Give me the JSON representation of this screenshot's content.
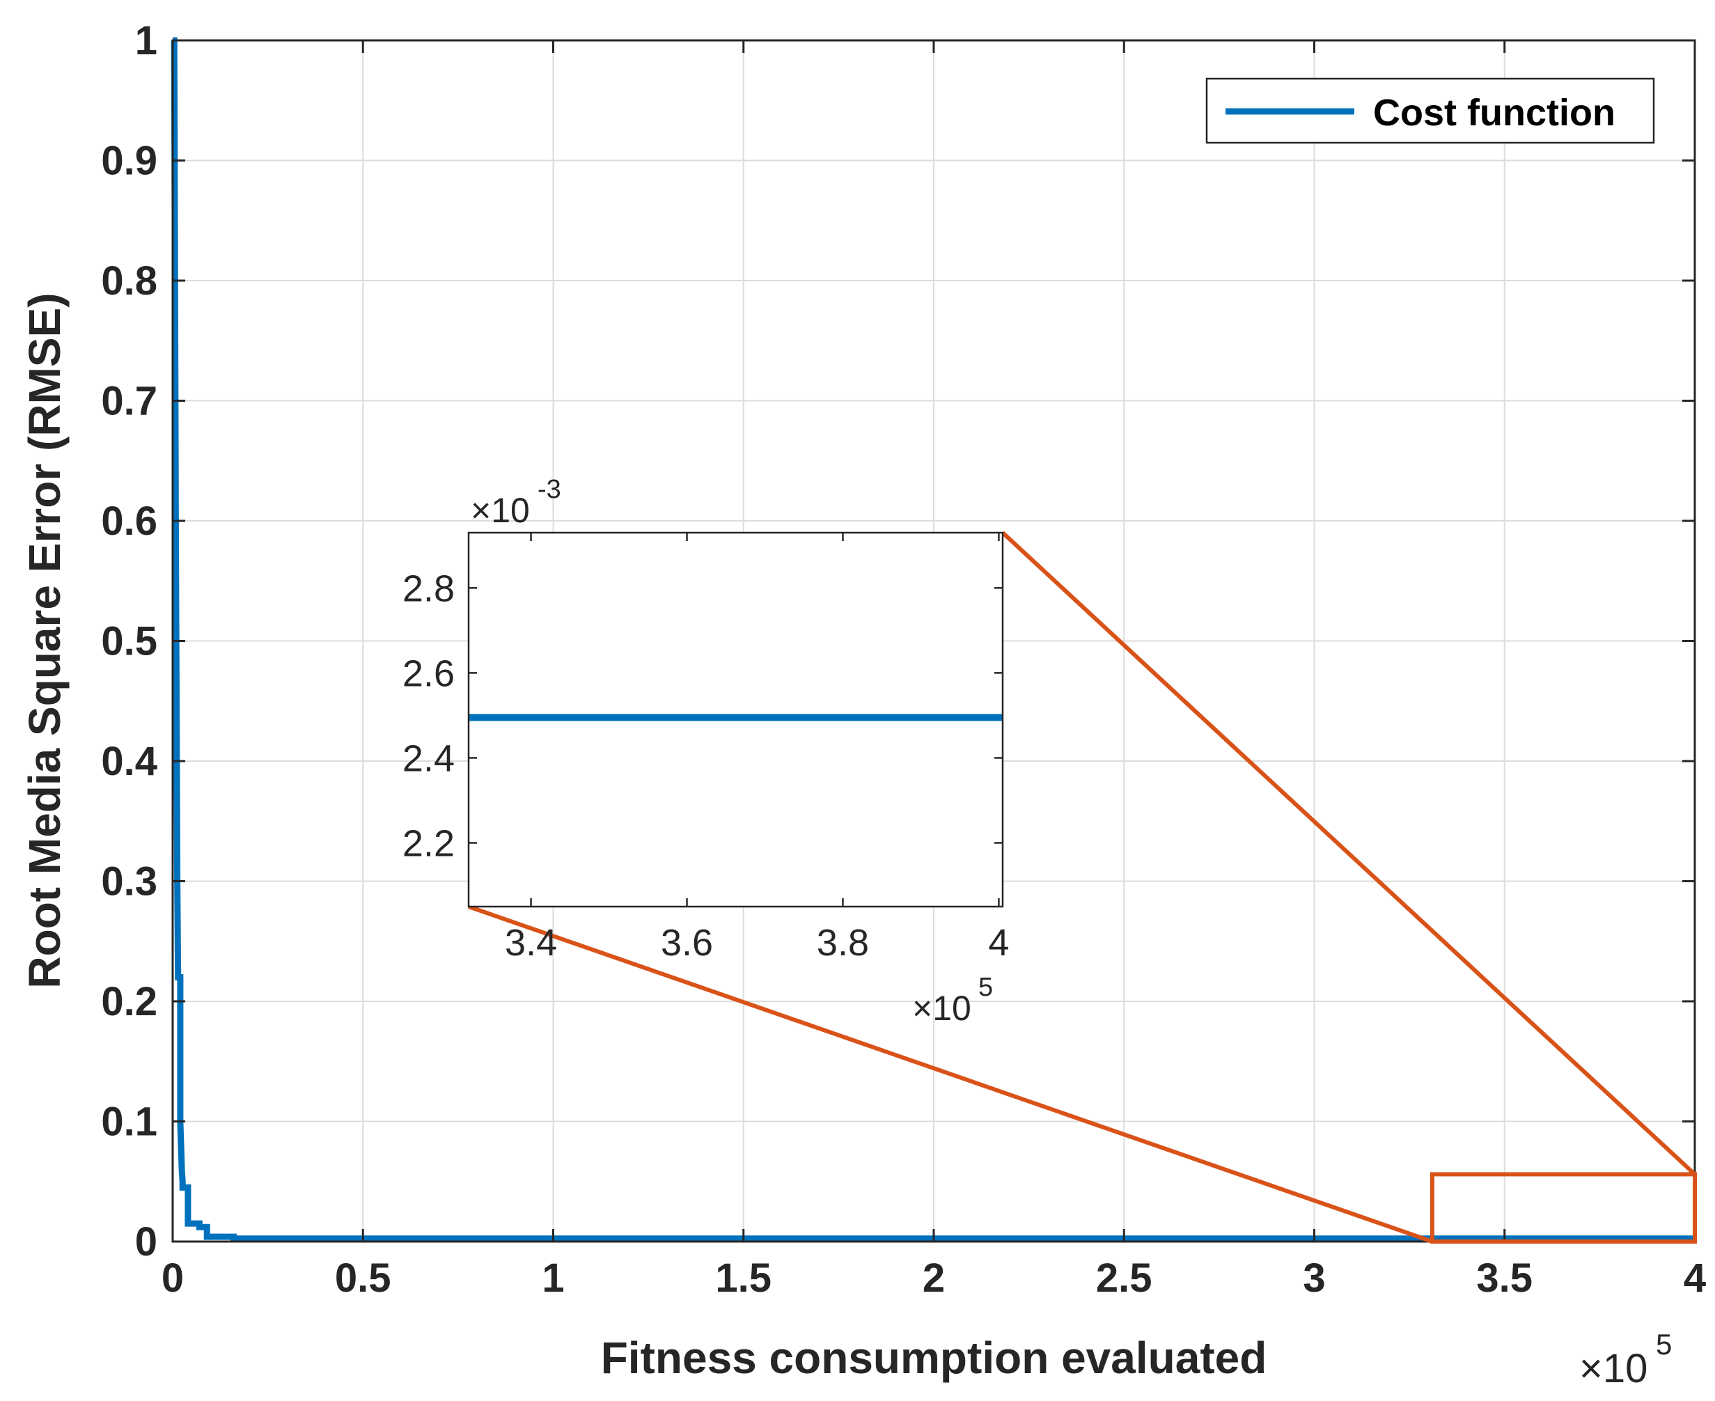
{
  "chart_data": [
    {
      "id": "main",
      "type": "line",
      "title": "",
      "xlabel": "Fitness consumption evaluated",
      "ylabel": "Root Media Square Error (RMSE)",
      "xlim": [
        0,
        400000
      ],
      "ylim": [
        0,
        1
      ],
      "x_multiplier_label": "×10",
      "x_multiplier_exp": "5",
      "xticks": [
        0,
        50000,
        100000,
        150000,
        200000,
        250000,
        300000,
        350000,
        400000
      ],
      "xtick_labels": [
        "0",
        "0.5",
        "1",
        "1.5",
        "2",
        "2.5",
        "3",
        "3.5",
        "4"
      ],
      "yticks": [
        0,
        0.1,
        0.2,
        0.3,
        0.4,
        0.5,
        0.6,
        0.7,
        0.8,
        0.9,
        1
      ],
      "ytick_labels": [
        "0",
        "0.1",
        "0.2",
        "0.3",
        "0.4",
        "0.5",
        "0.6",
        "0.7",
        "0.8",
        "0.9",
        "1"
      ],
      "grid": true,
      "legend": {
        "location": "top-right",
        "entries": [
          "Cost function"
        ]
      },
      "series": [
        {
          "name": "Cost function",
          "color": "#0072BD",
          "x": [
            0,
            400,
            800,
            1200,
            1400,
            1400,
            1600,
            2000,
            2000,
            2400,
            2600,
            2600,
            3000,
            3000,
            4000,
            4000,
            6000,
            6000,
            7000,
            7000,
            9000,
            9000,
            16000,
            16000,
            400000
          ],
          "y": [
            1.0,
            1.0,
            0.6,
            0.3,
            0.22,
            0.22,
            0.22,
            0.22,
            0.1,
            0.06,
            0.05,
            0.045,
            0.045,
            0.045,
            0.045,
            0.015,
            0.015,
            0.015,
            0.015,
            0.012,
            0.012,
            0.004,
            0.004,
            0.0025,
            0.0025
          ]
        }
      ],
      "zoom_region": {
        "x": [
          331000,
          400000
        ],
        "y": [
          0,
          0.056
        ]
      }
    },
    {
      "id": "inset",
      "type": "line",
      "xlim": [
        332000,
        400500
      ],
      "ylim": [
        0.00205,
        0.00293
      ],
      "xticks": [
        340000,
        360000,
        380000,
        400000
      ],
      "xtick_labels": [
        "3.4",
        "3.6",
        "3.8",
        "4"
      ],
      "yticks": [
        0.0022,
        0.0024,
        0.0026,
        0.0028
      ],
      "ytick_labels": [
        "2.2",
        "2.4",
        "2.6",
        "2.8"
      ],
      "x_multiplier_label": "×10",
      "x_multiplier_exp": "5",
      "y_multiplier_label": "×10",
      "y_multiplier_exp": "-3",
      "grid": false,
      "series": [
        {
          "name": "Cost function",
          "color": "#0072BD",
          "x": [
            332000,
            400500
          ],
          "y": [
            0.002495,
            0.002495
          ]
        }
      ]
    }
  ],
  "colors": {
    "series": "#0072BD",
    "zoom": "#D95319",
    "grid": "#DCDCDC",
    "axis": "#262626"
  }
}
